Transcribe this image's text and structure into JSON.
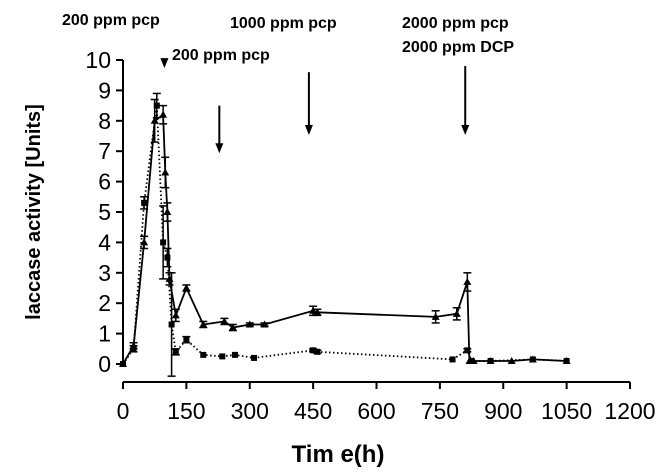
{
  "chart_data": {
    "type": "line",
    "title": "",
    "xlabel": "Tim e(h)",
    "ylabel": "laccase activity [Units]",
    "xlim": [
      0,
      1200
    ],
    "ylim": [
      0,
      10
    ],
    "x_ticks": [
      0,
      150,
      300,
      450,
      600,
      750,
      900,
      1050,
      1200
    ],
    "x_tick_labels": [
      "0",
      "150",
      "300",
      "450",
      "600",
      "750",
      "900",
      "1050",
      "1200"
    ],
    "y_ticks": [
      0,
      1,
      2,
      3,
      4,
      5,
      6,
      7,
      8,
      9,
      10
    ],
    "y_tick_labels": [
      "0",
      "1",
      "2",
      "3",
      "4",
      "5",
      "6",
      "7",
      "8",
      "9",
      "10"
    ],
    "grid": false,
    "legend": "none",
    "series": [
      {
        "style": "solid",
        "marker": "triangle",
        "color": "#000000",
        "x": [
          0,
          25,
          50,
          75,
          95,
          100,
          105,
          110,
          125,
          150,
          190,
          240,
          260,
          300,
          335,
          450,
          460,
          740,
          790,
          815,
          820,
          830,
          870,
          920,
          970,
          1050
        ],
        "y": [
          0,
          0.6,
          4.0,
          8.0,
          8.2,
          6.3,
          5.0,
          2.8,
          1.6,
          2.5,
          1.3,
          1.4,
          1.2,
          1.3,
          1.3,
          1.75,
          1.7,
          1.55,
          1.65,
          2.7,
          0.1,
          0.1,
          0.1,
          0.1,
          0.15,
          0.1
        ],
        "error": [
          0,
          0.1,
          0.2,
          0.7,
          0.3,
          0.5,
          0.3,
          0.2,
          0.2,
          0.1,
          0.1,
          0.1,
          0.1,
          0.05,
          0.05,
          0.15,
          0.1,
          0.2,
          0.2,
          0.3,
          0,
          0,
          0,
          0,
          0,
          0
        ]
      },
      {
        "style": "dotted",
        "marker": "square",
        "color": "#000000",
        "x": [
          0,
          25,
          50,
          80,
          95,
          105,
          115,
          125,
          150,
          190,
          235,
          265,
          310,
          450,
          460,
          780,
          815,
          825,
          870,
          970,
          1050
        ],
        "y": [
          0,
          0.5,
          5.3,
          8.5,
          4.0,
          3.5,
          1.3,
          0.4,
          0.8,
          0.3,
          0.25,
          0.3,
          0.2,
          0.45,
          0.4,
          0.15,
          0.45,
          0.1,
          0.1,
          0.15,
          0.1
        ],
        "error": [
          0,
          0.1,
          0.2,
          0.4,
          1.2,
          0.3,
          1.7,
          0.1,
          0.1,
          0,
          0,
          0,
          0,
          0.05,
          0.05,
          0,
          0.05,
          0,
          0,
          0,
          0
        ]
      }
    ],
    "annotations": [
      {
        "text": "200 ppm pcp",
        "arrow_x": 98,
        "arrow_from_y": 10,
        "arrow_to_y": 9.8
      },
      {
        "text": "200 ppm pcp",
        "arrow_x": 228,
        "arrow_from_y": 8.5,
        "arrow_to_y": 7.0
      },
      {
        "text": "1000 ppm pcp",
        "arrow_x": 440,
        "arrow_from_y": 9.6,
        "arrow_to_y": 7.6
      },
      {
        "text": "2000 ppm pcp",
        "arrow_x": 810,
        "arrow_from_y": 9.8,
        "arrow_to_y": 7.6
      },
      {
        "text": "2000 ppm DCP"
      }
    ]
  }
}
